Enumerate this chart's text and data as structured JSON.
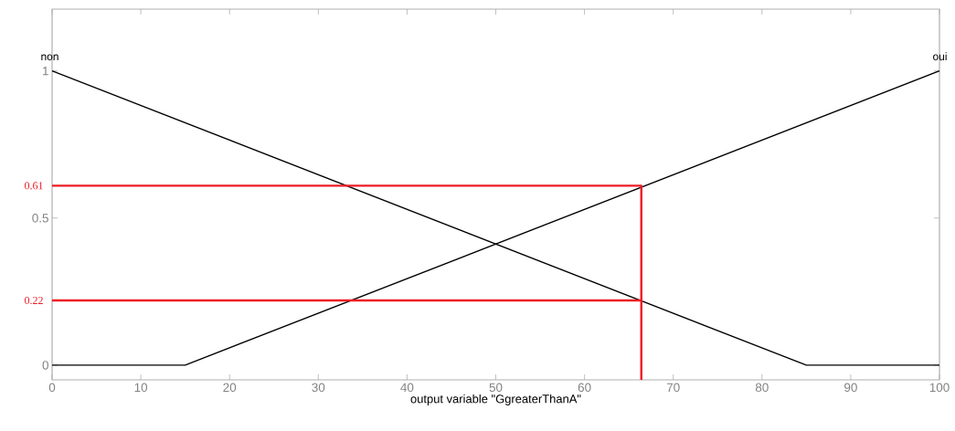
{
  "chart_data": {
    "type": "line",
    "xlabel": "output variable \"GgreaterThanA\"",
    "xlim": [
      0,
      100
    ],
    "ylim": [
      -0.05,
      1.21
    ],
    "xticks": [
      0,
      10,
      20,
      30,
      40,
      50,
      60,
      70,
      80,
      90,
      100
    ],
    "yticks": [
      0,
      0.5,
      1
    ],
    "grid": false,
    "series": [
      {
        "name": "non",
        "color": "#000000",
        "x": [
          0,
          85,
          100
        ],
        "values": [
          1,
          0,
          0
        ]
      },
      {
        "name": "oui",
        "color": "#000000",
        "x": [
          0,
          15,
          100
        ],
        "values": [
          0,
          0,
          1
        ]
      },
      {
        "color": "#ed1c24",
        "x": [
          0,
          66.4,
          66.4
        ],
        "values": [
          0.61,
          0.61,
          -0.05
        ]
      },
      {
        "color": "#ed1c24",
        "x": [
          0,
          66.4
        ],
        "values": [
          0.22,
          0.22
        ]
      }
    ],
    "annotations": [
      {
        "text": "0.61",
        "x": 0,
        "y": 0.61
      },
      {
        "text": "0.22",
        "x": 0,
        "y": 0.22
      }
    ]
  }
}
